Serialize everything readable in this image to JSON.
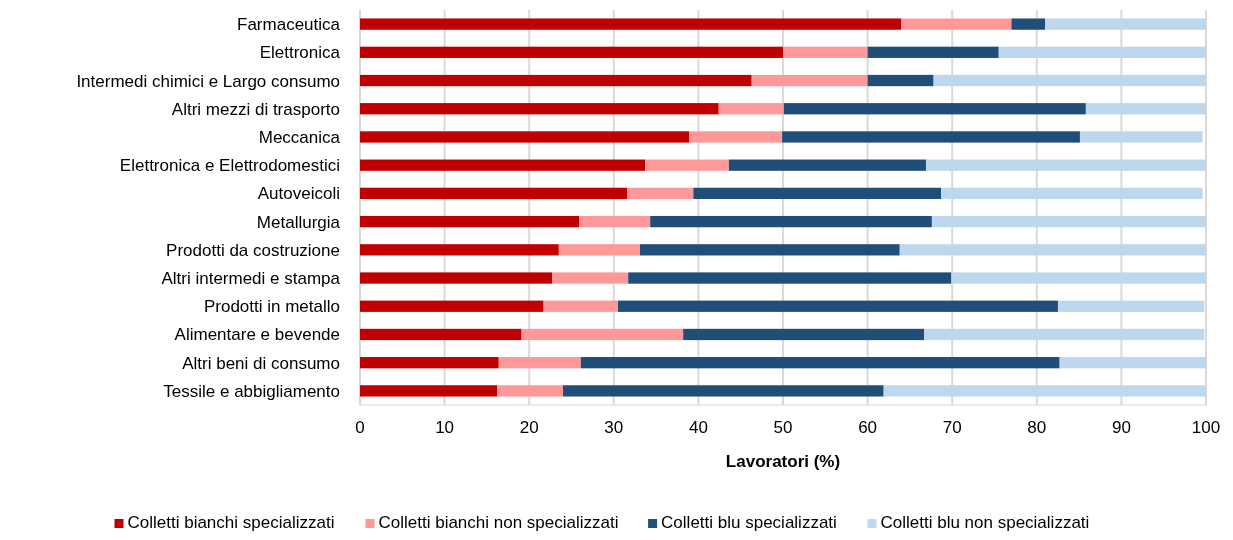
{
  "chart_data": {
    "type": "bar",
    "orientation": "horizontal",
    "stacked": true,
    "xlabel": "Lavoratori (%)",
    "categories": [
      "Farmaceutica",
      "Elettronica",
      "Intermedi chimici e Largo consumo",
      "Altri mezzi di trasporto",
      "Meccanica",
      "Elettronica e Elettrodomestici",
      "Autoveicoli",
      "Metallurgia",
      "Prodotti da costruzione",
      "Altri intermedi e stampa",
      "Prodotti in metallo",
      "Alimentare e bevende",
      "Altri beni di consumo",
      "Tessile e abbigliamento"
    ],
    "series": [
      {
        "name": "Colletti bianchi specializzati",
        "color": "#c00000",
        "values": [
          64,
          50,
          46.3,
          42.4,
          38.9,
          33.7,
          31.6,
          25.9,
          23.5,
          22.7,
          21.7,
          19.1,
          16.4,
          16.2
        ]
      },
      {
        "name": "Colletti bianchi non specializzati",
        "color": "#ff9999",
        "values": [
          13,
          10,
          13.7,
          7.7,
          11,
          9.9,
          7.8,
          8.4,
          9.6,
          9,
          8.8,
          19.1,
          9.7,
          7.8
        ]
      },
      {
        "name": "Colletti blu specializzati",
        "color": "#1f4e79",
        "values": [
          4,
          15.5,
          7.8,
          35.7,
          35.2,
          23.3,
          29.3,
          33.3,
          30.7,
          38.2,
          52,
          28.5,
          56.6,
          37.9
        ]
      },
      {
        "name": "Colletti blu non specializzati",
        "color": "#bdd7ee",
        "values": [
          19,
          24.5,
          32.2,
          14.2,
          14.5,
          33.1,
          30.9,
          32.4,
          36.2,
          30.1,
          17.3,
          33.1,
          17.3,
          38.1
        ]
      }
    ],
    "xlim": [
      0,
      100
    ],
    "xticks": [
      0,
      10,
      20,
      30,
      40,
      50,
      60,
      70,
      80,
      90,
      100
    ],
    "grid": "x",
    "legend": "bottom"
  }
}
